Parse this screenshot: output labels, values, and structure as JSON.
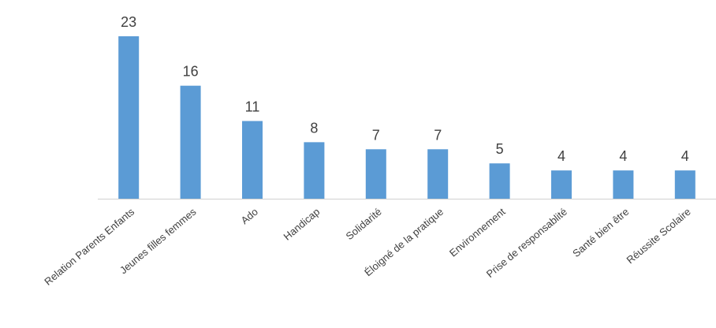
{
  "chart_data": {
    "type": "bar",
    "categories": [
      "Relation Parents Enfants",
      "Jeunes filles femmes",
      "Ado",
      "Handicap",
      "Solidarité",
      "Éloigné de la pratique",
      "Environnement",
      "Prise de responsablité",
      "Santé bien être",
      "Réussite Scolaire"
    ],
    "values": [
      23,
      16,
      11,
      8,
      7,
      7,
      5,
      4,
      4,
      4
    ],
    "title": "",
    "xlabel": "",
    "ylabel": "",
    "ylim": [
      0,
      23
    ],
    "grid": false,
    "legend": "none",
    "bar_color": "#5B9BD5"
  }
}
